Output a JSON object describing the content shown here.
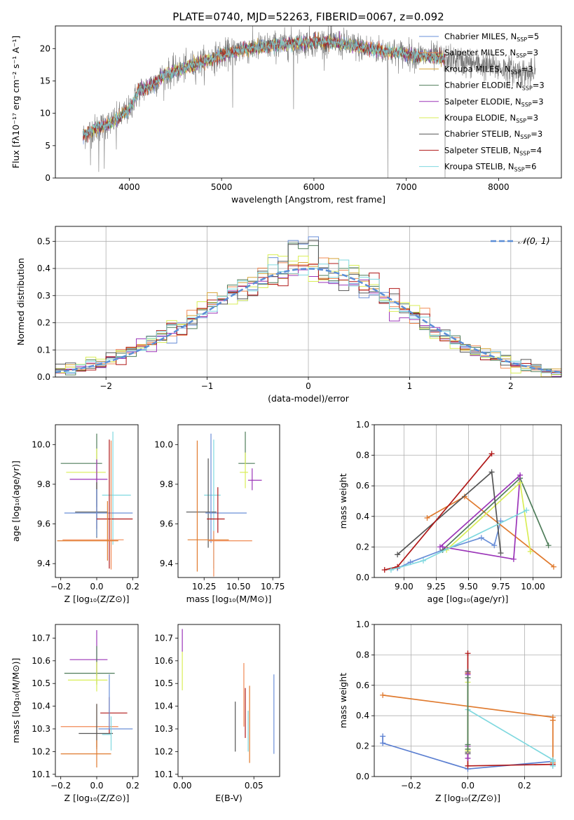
{
  "figure_title": "PLATE=0740, MJD=52263, FIBERID=0067, z=0.092",
  "colors": {
    "Chabrier MILES": "#6a8fd8",
    "Salpeter MILES": "#f08a55",
    "Kroupa MILES": "#d7a53a",
    "Chabrier ELODIE": "#4f7d5a",
    "Salpeter ELODIE": "#9b35b8",
    "Kroupa ELODIE": "#d9ee57",
    "Chabrier STELIB": "#555555",
    "Salpeter STELIB": "#b01818",
    "Kroupa STELIB": "#7fd8df",
    "Z_orange": "#e07a2e",
    "Z_blue": "#5b7fd1"
  },
  "chart_data": [
    {
      "id": "spectrum",
      "type": "line",
      "xlabel": "wavelength [Angstrom, rest frame]",
      "ylabel": "Flux [fλ10⁻¹⁷ erg cm⁻² s⁻¹ A⁻¹]",
      "xlim": [
        3200,
        8680
      ],
      "ylim": [
        0,
        23.5
      ],
      "xticks": [
        "4000",
        "5000",
        "6000",
        "7000",
        "8000"
      ],
      "xtick_values": [
        4000,
        5000,
        6000,
        7000,
        8000
      ],
      "yticks": [
        "0",
        "5",
        "10",
        "15",
        "20"
      ],
      "ytick_values": [
        0,
        5,
        10,
        15,
        20
      ],
      "legend_position": "top-right",
      "continuum": {
        "x": [
          3500,
          3600,
          3700,
          3800,
          3900,
          4000,
          4100,
          4200,
          4300,
          4400,
          4600,
          4800,
          5000,
          5200,
          5400,
          5600,
          5800,
          6000,
          6200,
          6400,
          6600,
          6800,
          7000,
          7200,
          7400,
          7600,
          7800,
          8000,
          8200,
          8400
        ],
        "y": [
          6.5,
          7.5,
          8.0,
          8.5,
          9.5,
          10.5,
          13.5,
          14.0,
          15.0,
          16.0,
          17.0,
          18.0,
          19.0,
          19.8,
          20.2,
          20.5,
          20.8,
          21.0,
          21.0,
          20.5,
          20.0,
          19.5,
          19.2,
          18.8,
          18.5,
          18.0,
          17.5,
          17.0,
          16.5,
          16.0
        ]
      },
      "observed_range": [
        3500,
        8400
      ],
      "model_range": [
        3500,
        7420
      ],
      "series": [
        {
          "name": "Chabrier MILES, N",
          "sub": "SSP",
          "suffix": "=5"
        },
        {
          "name": "Salpeter MILES, N",
          "sub": "SSP",
          "suffix": "=3"
        },
        {
          "name": "Kroupa MILES, N",
          "sub": "SSP",
          "suffix": "=3"
        },
        {
          "name": "Chabrier ELODIE, N",
          "sub": "SSP",
          "suffix": "=3"
        },
        {
          "name": "Salpeter ELODIE, N",
          "sub": "SSP",
          "suffix": "=3"
        },
        {
          "name": "Kroupa ELODIE, N",
          "sub": "SSP",
          "suffix": "=3"
        },
        {
          "name": "Chabrier STELIB, N",
          "sub": "SSP",
          "suffix": "=3"
        },
        {
          "name": "Salpeter STELIB, N",
          "sub": "SSP",
          "suffix": "=4"
        },
        {
          "name": "Kroupa STELIB, N",
          "sub": "SSP",
          "suffix": "=6"
        }
      ]
    },
    {
      "id": "residuals",
      "type": "histogram",
      "xlabel": "(data-model)/error",
      "ylabel": "Normed distribution",
      "xlim": [
        -2.5,
        2.5
      ],
      "ylim": [
        0,
        0.555
      ],
      "xticks": [
        "−2",
        "−1",
        "0",
        "1",
        "2"
      ],
      "xtick_values": [
        -2,
        -1,
        0,
        1,
        2
      ],
      "yticks": [
        "0.0",
        "0.1",
        "0.2",
        "0.3",
        "0.4",
        "0.5"
      ],
      "ytick_values": [
        0,
        0.1,
        0.2,
        0.3,
        0.4,
        0.5
      ],
      "grid": true,
      "legend": "𝒩(0, 1)",
      "bin_width": 0.1,
      "bin_range": [
        -2.5,
        2.5
      ]
    },
    {
      "id": "age_vs_Z",
      "type": "errorbar",
      "xlabel": "Z [log₁₀(Z/Z⊙)]",
      "ylabel": "age  [log₁₀(age/yr)]",
      "xlim": [
        -0.23,
        0.23
      ],
      "ylim": [
        9.33,
        10.1
      ],
      "xticks": [
        "−0.2",
        "0.0",
        "0.2"
      ],
      "xtick_values": [
        -0.2,
        0.0,
        0.2
      ],
      "yticks": [
        "9.4",
        "9.6",
        "9.8",
        "10.0"
      ],
      "ytick_values": [
        9.4,
        9.6,
        9.8,
        10.0
      ],
      "points": [
        {
          "x": 0.0,
          "y": 9.905,
          "xerr": [
            0.2,
            0.03
          ],
          "yerr": [
            0.22,
            0.15
          ],
          "color": "Chabrier ELODIE"
        },
        {
          "x": 0.0,
          "y": 9.86,
          "xerr": [
            0.17,
            0.05
          ],
          "yerr": [
            0.32,
            0.12
          ],
          "color": "Kroupa ELODIE"
        },
        {
          "x": 0.0,
          "y": 9.825,
          "xerr": [
            0.15,
            0.06
          ],
          "yerr": [
            0.25,
            0.1
          ],
          "color": "Salpeter ELODIE"
        },
        {
          "x": 0.09,
          "y": 9.745,
          "xerr": [
            0.06,
            0.1
          ],
          "yerr": [
            0.25,
            0.32
          ],
          "color": "Kroupa STELIB"
        },
        {
          "x": 0.0,
          "y": 9.66,
          "xerr": [
            0.12,
            0.06
          ],
          "yerr": [
            0.13,
            0.15
          ],
          "color": "Chabrier STELIB"
        },
        {
          "x": 0.0,
          "y": 9.655,
          "xerr": [
            0.18,
            0.2
          ],
          "yerr": [
            0.12,
            0.12
          ],
          "color": "Chabrier MILES"
        },
        {
          "x": 0.07,
          "y": 9.625,
          "xerr": [
            0.07,
            0.13
          ],
          "yerr": [
            0.25,
            0.4
          ],
          "color": "Salpeter STELIB"
        },
        {
          "x": 0.08,
          "y": 9.52,
          "xerr": [
            0.27,
            0.07
          ],
          "yerr": [
            0.15,
            0.5
          ],
          "color": "Salpeter MILES"
        },
        {
          "x": 0.06,
          "y": 9.515,
          "xerr": [
            0.28,
            0.06
          ],
          "yerr": [
            0.1,
            0.2
          ],
          "color": "Z_orange"
        }
      ]
    },
    {
      "id": "age_vs_mass",
      "type": "errorbar",
      "xlabel": "mass [log₁₀(M/M⊙)]",
      "ylabel": "",
      "xlim": [
        10.06,
        10.8
      ],
      "ylim": [
        9.33,
        10.1
      ],
      "xticks": [
        "10.25",
        "10.50",
        "10.75"
      ],
      "xtick_values": [
        10.25,
        10.5,
        10.75
      ],
      "yticks": [
        "9.4",
        "9.6",
        "9.8",
        "10.0"
      ],
      "ytick_values": [
        9.4,
        9.6,
        9.8,
        10.0
      ],
      "points": [
        {
          "x": 10.55,
          "y": 9.905,
          "xerr": [
            0.05,
            0.07
          ],
          "yerr": [
            0.0,
            0.16
          ],
          "color": "Chabrier ELODIE"
        },
        {
          "x": 10.55,
          "y": 9.86,
          "xerr": [
            0.04,
            0.02
          ],
          "yerr": [
            0.08,
            0.1
          ],
          "color": "Kroupa ELODIE"
        },
        {
          "x": 10.6,
          "y": 9.82,
          "xerr": [
            0.03,
            0.07
          ],
          "yerr": [
            0.05,
            0.06
          ],
          "color": "Salpeter ELODIE"
        },
        {
          "x": 10.32,
          "y": 9.745,
          "xerr": [
            0.07,
            0.05
          ],
          "yerr": [
            0.37,
            0.28
          ],
          "color": "Kroupa STELIB"
        },
        {
          "x": 10.28,
          "y": 9.66,
          "xerr": [
            0.16,
            0.06
          ],
          "yerr": [
            0.18,
            0.27
          ],
          "color": "Chabrier STELIB"
        },
        {
          "x": 10.3,
          "y": 9.655,
          "xerr": [
            0.04,
            0.26
          ],
          "yerr": [
            0.15,
            0.4
          ],
          "color": "Chabrier MILES"
        },
        {
          "x": 10.35,
          "y": 9.625,
          "xerr": [
            0.08,
            0.05
          ],
          "yerr": [
            0.07,
            0.16
          ],
          "color": "Salpeter STELIB"
        },
        {
          "x": 10.2,
          "y": 9.52,
          "xerr": [
            0.07,
            0.23
          ],
          "yerr": [
            0.16,
            0.5
          ],
          "color": "Z_orange"
        },
        {
          "x": 10.32,
          "y": 9.515,
          "xerr": [
            0.04,
            0.28
          ],
          "yerr": [
            0.18,
            0.05
          ],
          "color": "Salpeter MILES"
        }
      ]
    },
    {
      "id": "weight_vs_age",
      "type": "line",
      "xlabel": "age  [log₁₀(age/yr)]",
      "ylabel": "mass weight",
      "xlim": [
        8.77,
        10.22
      ],
      "ylim": [
        0,
        1.0
      ],
      "xticks": [
        "9.00",
        "9.25",
        "9.50",
        "9.75",
        "10.00"
      ],
      "xtick_values": [
        9.0,
        9.25,
        9.5,
        9.75,
        10.0
      ],
      "yticks": [
        "0.0",
        "0.2",
        "0.4",
        "0.6",
        "0.8",
        "1.0"
      ],
      "ytick_values": [
        0,
        0.2,
        0.4,
        0.6,
        0.8,
        1.0
      ],
      "grid": true,
      "series": [
        {
          "color": "Chabrier MILES",
          "x": [
            8.95,
            9.05,
            9.3,
            9.6,
            9.7,
            9.75
          ],
          "y": [
            0.06,
            0.1,
            0.18,
            0.26,
            0.21,
            0.37
          ]
        },
        {
          "color": "Z_orange",
          "x": [
            9.18,
            9.47,
            10.16
          ],
          "y": [
            0.39,
            0.53,
            0.07
          ]
        },
        {
          "color": "Chabrier ELODIE",
          "x": [
            9.3,
            9.9,
            10.12
          ],
          "y": [
            0.18,
            0.65,
            0.21
          ]
        },
        {
          "color": "Salpeter ELODIE",
          "x": [
            9.3,
            9.85,
            9.9,
            9.28
          ],
          "y": [
            0.2,
            0.12,
            0.67,
            0.2
          ]
        },
        {
          "color": "Kroupa ELODIE",
          "x": [
            9.33,
            9.9,
            9.98
          ],
          "y": [
            0.18,
            0.62,
            0.17
          ]
        },
        {
          "color": "Chabrier STELIB",
          "x": [
            8.95,
            9.68,
            9.75
          ],
          "y": [
            0.15,
            0.69,
            0.16
          ]
        },
        {
          "color": "Salpeter STELIB",
          "x": [
            8.85,
            8.95,
            9.68
          ],
          "y": [
            0.05,
            0.07,
            0.81
          ]
        },
        {
          "color": "Kroupa STELIB",
          "x": [
            8.9,
            9.15,
            9.95
          ],
          "y": [
            0.05,
            0.11,
            0.44
          ]
        }
      ]
    },
    {
      "id": "mass_vs_Z",
      "type": "errorbar",
      "xlabel": "Z [log₁₀(Z/Z⊙)]",
      "ylabel": "mass [log₁₀(M/M⊙)]",
      "xlim": [
        -0.23,
        0.23
      ],
      "ylim": [
        10.09,
        10.76
      ],
      "xticks": [
        "−0.2",
        "0.0",
        "0.2"
      ],
      "xtick_values": [
        -0.2,
        0.0,
        0.2
      ],
      "yticks": [
        "10.1",
        "10.2",
        "10.3",
        "10.4",
        "10.5",
        "10.6",
        "10.7"
      ],
      "ytick_values": [
        10.1,
        10.2,
        10.3,
        10.4,
        10.5,
        10.6,
        10.7
      ],
      "points": [
        {
          "x": 0.0,
          "y": 10.605,
          "xerr": [
            0.15,
            0.06
          ],
          "yerr": [
            0.07,
            0.13
          ],
          "color": "Salpeter ELODIE"
        },
        {
          "x": 0.0,
          "y": 10.545,
          "xerr": [
            0.18,
            0.1
          ],
          "yerr": [
            0.05,
            0.12
          ],
          "color": "Chabrier ELODIE"
        },
        {
          "x": 0.0,
          "y": 10.515,
          "xerr": [
            0.16,
            0.06
          ],
          "yerr": [
            0.05,
            0.08
          ],
          "color": "Kroupa ELODIE"
        },
        {
          "x": 0.07,
          "y": 10.37,
          "xerr": [
            0.05,
            0.1
          ],
          "yerr": [
            0.09,
            0.07
          ],
          "color": "Salpeter STELIB"
        },
        {
          "x": 0.0,
          "y": 10.31,
          "xerr": [
            0.2,
            0.12
          ],
          "yerr": [
            0.09,
            0.1
          ],
          "color": "Salpeter MILES"
        },
        {
          "x": 0.07,
          "y": 10.3,
          "xerr": [
            0.06,
            0.13
          ],
          "yerr": [
            0.0,
            0.24
          ],
          "color": "Chabrier MILES"
        },
        {
          "x": 0.0,
          "y": 10.28,
          "xerr": [
            0.1,
            0.09
          ],
          "yerr": [
            0.07,
            0.13
          ],
          "color": "Chabrier STELIB"
        },
        {
          "x": 0.08,
          "y": 10.275,
          "xerr": [
            0.05,
            0.0
          ],
          "yerr": [
            0.07,
            0.08
          ],
          "color": "Kroupa STELIB"
        },
        {
          "x": 0.0,
          "y": 10.19,
          "xerr": [
            0.2,
            0.08
          ],
          "yerr": [
            0.06,
            0.06
          ],
          "color": "Z_orange"
        }
      ]
    },
    {
      "id": "mass_vs_ebv",
      "type": "errorbar",
      "xlabel": "E(B-V)",
      "ylabel": "",
      "xlim": [
        -0.003,
        0.068
      ],
      "ylim": [
        10.09,
        10.76
      ],
      "xticks": [
        "0.00",
        "0.05"
      ],
      "xtick_values": [
        0.0,
        0.05
      ],
      "yticks": [
        "10.1",
        "10.2",
        "10.3",
        "10.4",
        "10.5",
        "10.6",
        "10.7"
      ],
      "ytick_values": [
        10.1,
        10.2,
        10.3,
        10.4,
        10.5,
        10.6,
        10.7
      ],
      "points": [
        {
          "x": 0.0,
          "y": 10.69,
          "xerr": [
            0,
            0
          ],
          "yerr": [
            0.05,
            0.05
          ],
          "color": "Salpeter ELODIE"
        },
        {
          "x": 0.0,
          "y": 10.55,
          "xerr": [
            0,
            0
          ],
          "yerr": [
            0.08,
            0.09
          ],
          "color": "Kroupa ELODIE"
        },
        {
          "x": 0.037,
          "y": 10.31,
          "xerr": [
            0,
            0
          ],
          "yerr": [
            0.11,
            0.11
          ],
          "color": "Chabrier STELIB"
        },
        {
          "x": 0.043,
          "y": 10.48,
          "xerr": [
            0,
            0
          ],
          "yerr": [
            0.17,
            0.11
          ],
          "color": "Salpeter MILES"
        },
        {
          "x": 0.044,
          "y": 10.37,
          "xerr": [
            0,
            0
          ],
          "yerr": [
            0.11,
            0.11
          ],
          "color": "Salpeter STELIB"
        },
        {
          "x": 0.046,
          "y": 10.29,
          "xerr": [
            0,
            0
          ],
          "yerr": [
            0.09,
            0.09
          ],
          "color": "Kroupa STELIB"
        },
        {
          "x": 0.047,
          "y": 10.32,
          "xerr": [
            0,
            0
          ],
          "yerr": [
            0.17,
            0.17
          ],
          "color": "Z_orange"
        },
        {
          "x": 0.064,
          "y": 10.36,
          "xerr": [
            0,
            0
          ],
          "yerr": [
            0.17,
            0.18
          ],
          "color": "Chabrier MILES"
        }
      ]
    },
    {
      "id": "weight_vs_Z",
      "type": "line",
      "xlabel": "Z [log₁₀(Z/Z⊙)]",
      "ylabel": "mass weight",
      "xlim": [
        -0.33,
        0.33
      ],
      "ylim": [
        0,
        1.0
      ],
      "xticks": [
        "−0.2",
        "0.0",
        "0.2"
      ],
      "xtick_values": [
        -0.2,
        0.0,
        0.2
      ],
      "yticks": [
        "0.0",
        "0.2",
        "0.4",
        "0.6",
        "0.8",
        "1.0"
      ],
      "ytick_values": [
        0,
        0.2,
        0.4,
        0.6,
        0.8,
        1.0
      ],
      "grid": true,
      "series": [
        {
          "color": "Z_orange",
          "x": [
            -0.3,
            0.3,
            0.3,
            0.3
          ],
          "y": [
            0.535,
            0.39,
            0.37,
            0.09
          ]
        },
        {
          "color": "Z_blue",
          "x": [
            -0.3,
            -0.3,
            0.0,
            0.3,
            0.3
          ],
          "y": [
            0.265,
            0.22,
            0.05,
            0.1,
            0.07
          ]
        },
        {
          "color": "Salpeter STELIB",
          "x": [
            0.0,
            0.0,
            0.0,
            0.3
          ],
          "y": [
            0.81,
            0.68,
            0.07,
            0.08
          ]
        },
        {
          "color": "Kroupa STELIB",
          "x": [
            0.0,
            0.3,
            0.3,
            0.3
          ],
          "y": [
            0.44,
            0.11,
            0.1,
            0.07
          ]
        },
        {
          "color": "Chabrier STELIB",
          "x": [
            0.0,
            0.0,
            0.0
          ],
          "y": [
            0.69,
            0.16,
            0.15
          ]
        },
        {
          "color": "Salpeter ELODIE",
          "x": [
            0.0,
            0.0,
            0.0
          ],
          "y": [
            0.67,
            0.2,
            0.12
          ]
        },
        {
          "color": "Kroupa ELODIE",
          "x": [
            0.0,
            0.0,
            0.0
          ],
          "y": [
            0.62,
            0.18,
            0.17
          ]
        },
        {
          "color": "Chabrier ELODIE",
          "x": [
            0.0,
            0.0,
            0.0
          ],
          "y": [
            0.65,
            0.21,
            0.18
          ]
        }
      ]
    }
  ]
}
